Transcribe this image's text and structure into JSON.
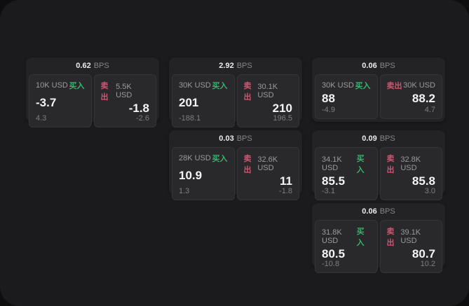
{
  "labels": {
    "bps_suffix": "BPS",
    "buy": "买入",
    "sell": "卖出"
  },
  "colors": {
    "buy_green": "#35b46c",
    "sell_red": "#d05571",
    "panel_bg": "#1b1b1d",
    "card_bg": "#232325"
  },
  "cards": [
    {
      "bps": "0.62",
      "buy": {
        "size": "10K USD",
        "value": "-3.7",
        "delta": "4.3"
      },
      "sell": {
        "size": "5.5K USD",
        "value": "-1.8",
        "delta": "-2.6"
      }
    },
    {
      "bps": "2.92",
      "buy": {
        "size": "30K USD",
        "value": "201",
        "delta": "-188.1"
      },
      "sell": {
        "size": "30.1K USD",
        "value": "210",
        "delta": "196.5"
      }
    },
    {
      "bps": "0.06",
      "buy": {
        "size": "30K USD",
        "value": "88",
        "delta": "-4.9"
      },
      "sell": {
        "size": "30K USD",
        "value": "88.2",
        "delta": "4.7"
      }
    },
    {
      "bps": "0.03",
      "buy": {
        "size": "28K USD",
        "value": "10.9",
        "delta": "1.3"
      },
      "sell": {
        "size": "32.6K USD",
        "value": "11",
        "delta": "-1.8"
      }
    },
    {
      "bps": "0.09",
      "buy": {
        "size": "34.1K USD",
        "value": "85.5",
        "delta": "-3.1"
      },
      "sell": {
        "size": "32.8K USD",
        "value": "85.8",
        "delta": "3.0"
      }
    },
    {
      "bps": "0.06",
      "buy": {
        "size": "31.8K USD",
        "value": "80.5",
        "delta": "-10.8"
      },
      "sell": {
        "size": "39.1K USD",
        "value": "80.7",
        "delta": "10.2"
      }
    }
  ]
}
